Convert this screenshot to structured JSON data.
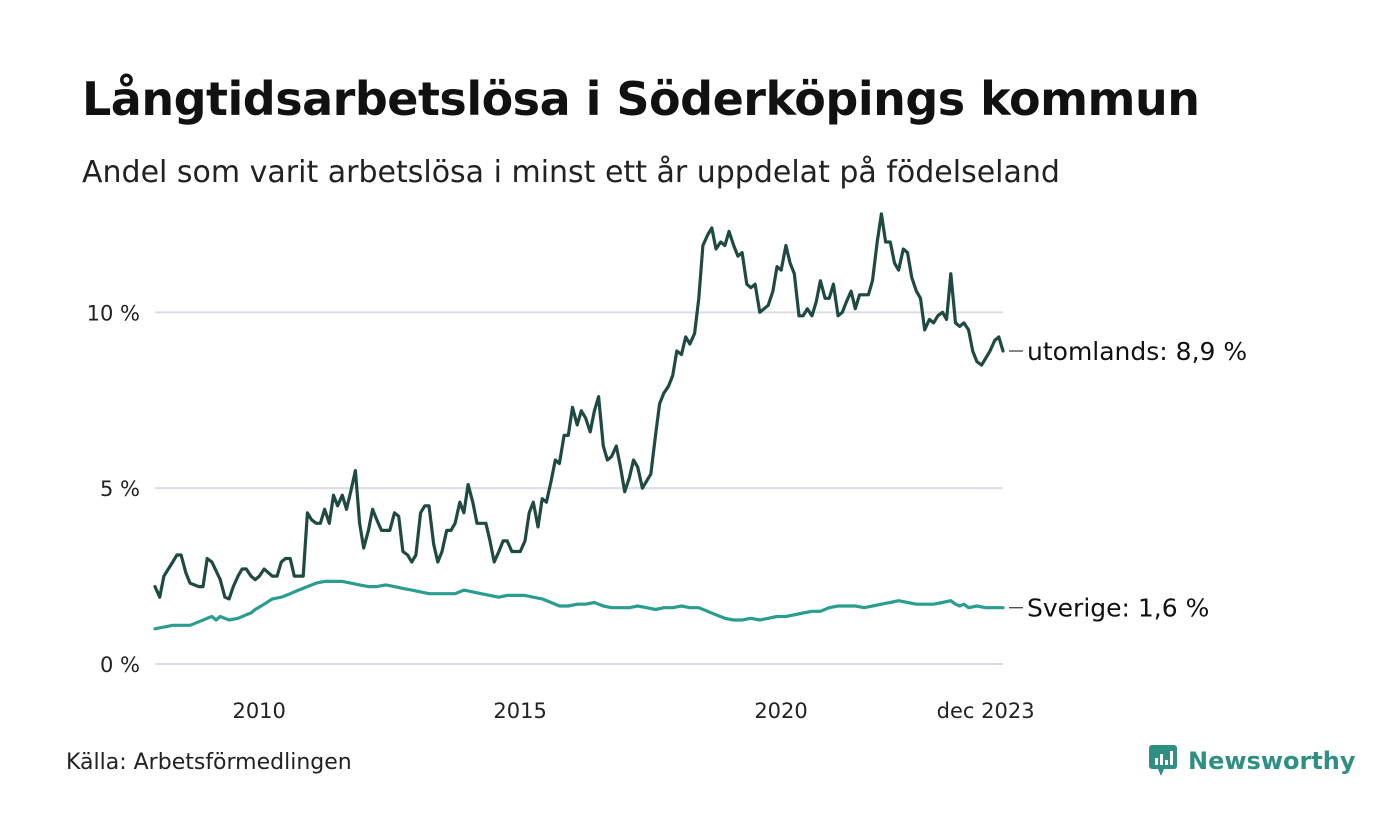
{
  "chart_data": {
    "type": "line",
    "title": "Långtidsarbetslösa i Söderköpings kommun",
    "subtitle": "Andel som varit arbetslösa i minst ett år uppdelat på födelseland",
    "xlabel": "",
    "ylabel": "",
    "ylim": [
      0,
      12
    ],
    "xlim": [
      2008.08,
      2023.92
    ],
    "y_ticks": [
      {
        "value": 0,
        "label": "0 %"
      },
      {
        "value": 5,
        "label": "5 %"
      },
      {
        "value": 10,
        "label": "10 %"
      }
    ],
    "x_ticks": [
      {
        "value": 2010,
        "label": "2010"
      },
      {
        "value": 2015,
        "label": "2015"
      },
      {
        "value": 2020,
        "label": "2020"
      },
      {
        "value": 2023.92,
        "label": "dec 2023"
      }
    ],
    "grid": true,
    "series": [
      {
        "name": "utomlands",
        "end_label": "utomlands: 8,9 %",
        "color": "#1f4a42",
        "points": [
          [
            2008.08,
            2.2
          ],
          [
            2008.17,
            1.9
          ],
          [
            2008.25,
            2.5
          ],
          [
            2008.42,
            2.9
          ],
          [
            2008.5,
            3.1
          ],
          [
            2008.58,
            3.1
          ],
          [
            2008.67,
            2.6
          ],
          [
            2008.75,
            2.3
          ],
          [
            2008.92,
            2.2
          ],
          [
            2009.0,
            2.2
          ],
          [
            2009.08,
            3.0
          ],
          [
            2009.17,
            2.9
          ],
          [
            2009.33,
            2.4
          ],
          [
            2009.42,
            1.9
          ],
          [
            2009.5,
            1.85
          ],
          [
            2009.58,
            2.2
          ],
          [
            2009.67,
            2.5
          ],
          [
            2009.75,
            2.7
          ],
          [
            2009.83,
            2.7
          ],
          [
            2009.92,
            2.5
          ],
          [
            2010.0,
            2.4
          ],
          [
            2010.08,
            2.5
          ],
          [
            2010.17,
            2.7
          ],
          [
            2010.25,
            2.6
          ],
          [
            2010.33,
            2.5
          ],
          [
            2010.42,
            2.5
          ],
          [
            2010.5,
            2.9
          ],
          [
            2010.58,
            3.0
          ],
          [
            2010.67,
            3.0
          ],
          [
            2010.75,
            2.5
          ],
          [
            2010.83,
            2.5
          ],
          [
            2010.92,
            2.5
          ],
          [
            2011.0,
            4.3
          ],
          [
            2011.08,
            4.1
          ],
          [
            2011.17,
            4.0
          ],
          [
            2011.25,
            4.0
          ],
          [
            2011.33,
            4.4
          ],
          [
            2011.42,
            4.0
          ],
          [
            2011.5,
            4.8
          ],
          [
            2011.58,
            4.5
          ],
          [
            2011.67,
            4.8
          ],
          [
            2011.75,
            4.4
          ],
          [
            2011.83,
            4.9
          ],
          [
            2011.92,
            5.5
          ],
          [
            2012.0,
            4.0
          ],
          [
            2012.08,
            3.3
          ],
          [
            2012.17,
            3.8
          ],
          [
            2012.25,
            4.4
          ],
          [
            2012.33,
            4.1
          ],
          [
            2012.42,
            3.8
          ],
          [
            2012.5,
            3.8
          ],
          [
            2012.58,
            3.8
          ],
          [
            2012.67,
            4.3
          ],
          [
            2012.75,
            4.2
          ],
          [
            2012.83,
            3.2
          ],
          [
            2012.92,
            3.1
          ],
          [
            2013.0,
            2.9
          ],
          [
            2013.08,
            3.1
          ],
          [
            2013.17,
            4.3
          ],
          [
            2013.25,
            4.5
          ],
          [
            2013.33,
            4.5
          ],
          [
            2013.42,
            3.4
          ],
          [
            2013.5,
            2.9
          ],
          [
            2013.58,
            3.2
          ],
          [
            2013.67,
            3.8
          ],
          [
            2013.75,
            3.8
          ],
          [
            2013.83,
            4.0
          ],
          [
            2013.92,
            4.6
          ],
          [
            2014.0,
            4.3
          ],
          [
            2014.08,
            5.1
          ],
          [
            2014.17,
            4.6
          ],
          [
            2014.25,
            4.0
          ],
          [
            2014.33,
            4.0
          ],
          [
            2014.42,
            4.0
          ],
          [
            2014.5,
            3.5
          ],
          [
            2014.58,
            2.9
          ],
          [
            2014.67,
            3.2
          ],
          [
            2014.75,
            3.5
          ],
          [
            2014.83,
            3.5
          ],
          [
            2014.92,
            3.2
          ],
          [
            2015.0,
            3.2
          ],
          [
            2015.08,
            3.2
          ],
          [
            2015.17,
            3.5
          ],
          [
            2015.25,
            4.3
          ],
          [
            2015.33,
            4.6
          ],
          [
            2015.42,
            3.9
          ],
          [
            2015.5,
            4.7
          ],
          [
            2015.58,
            4.6
          ],
          [
            2015.67,
            5.2
          ],
          [
            2015.75,
            5.8
          ],
          [
            2015.83,
            5.7
          ],
          [
            2015.92,
            6.5
          ],
          [
            2016.0,
            6.5
          ],
          [
            2016.08,
            7.3
          ],
          [
            2016.17,
            6.8
          ],
          [
            2016.25,
            7.2
          ],
          [
            2016.33,
            7.0
          ],
          [
            2016.42,
            6.6
          ],
          [
            2016.5,
            7.2
          ],
          [
            2016.58,
            7.6
          ],
          [
            2016.67,
            6.2
          ],
          [
            2016.75,
            5.8
          ],
          [
            2016.83,
            5.9
          ],
          [
            2016.92,
            6.2
          ],
          [
            2017.0,
            5.6
          ],
          [
            2017.08,
            4.9
          ],
          [
            2017.17,
            5.3
          ],
          [
            2017.25,
            5.8
          ],
          [
            2017.33,
            5.6
          ],
          [
            2017.42,
            5.0
          ],
          [
            2017.5,
            5.2
          ],
          [
            2017.58,
            5.4
          ],
          [
            2017.67,
            6.5
          ],
          [
            2017.75,
            7.4
          ],
          [
            2017.83,
            7.7
          ],
          [
            2017.92,
            7.9
          ],
          [
            2018.0,
            8.2
          ],
          [
            2018.08,
            8.9
          ],
          [
            2018.17,
            8.8
          ],
          [
            2018.25,
            9.3
          ],
          [
            2018.33,
            9.1
          ],
          [
            2018.42,
            9.4
          ],
          [
            2018.5,
            10.4
          ],
          [
            2018.58,
            11.9
          ],
          [
            2018.67,
            12.2
          ],
          [
            2018.75,
            12.4
          ],
          [
            2018.83,
            11.8
          ],
          [
            2018.92,
            12.0
          ],
          [
            2019.0,
            11.9
          ],
          [
            2019.08,
            12.3
          ],
          [
            2019.17,
            11.9
          ],
          [
            2019.25,
            11.6
          ],
          [
            2019.33,
            11.7
          ],
          [
            2019.42,
            10.8
          ],
          [
            2019.5,
            10.7
          ],
          [
            2019.58,
            10.8
          ],
          [
            2019.67,
            10.0
          ],
          [
            2019.75,
            10.1
          ],
          [
            2019.83,
            10.2
          ],
          [
            2019.92,
            10.6
          ],
          [
            2020.0,
            11.3
          ],
          [
            2020.08,
            11.2
          ],
          [
            2020.17,
            11.9
          ],
          [
            2020.25,
            11.4
          ],
          [
            2020.33,
            11.1
          ],
          [
            2020.42,
            9.9
          ],
          [
            2020.5,
            9.9
          ],
          [
            2020.58,
            10.1
          ],
          [
            2020.67,
            9.9
          ],
          [
            2020.75,
            10.3
          ],
          [
            2020.83,
            10.9
          ],
          [
            2020.92,
            10.4
          ],
          [
            2021.0,
            10.4
          ],
          [
            2021.08,
            10.8
          ],
          [
            2021.17,
            9.9
          ],
          [
            2021.25,
            10.0
          ],
          [
            2021.33,
            10.3
          ],
          [
            2021.42,
            10.6
          ],
          [
            2021.5,
            10.1
          ],
          [
            2021.58,
            10.5
          ],
          [
            2021.67,
            10.5
          ],
          [
            2021.75,
            10.5
          ],
          [
            2021.83,
            10.9
          ],
          [
            2021.92,
            12.0
          ],
          [
            2022.0,
            12.8
          ],
          [
            2022.08,
            12.0
          ],
          [
            2022.17,
            12.0
          ],
          [
            2022.25,
            11.4
          ],
          [
            2022.33,
            11.2
          ],
          [
            2022.42,
            11.8
          ],
          [
            2022.5,
            11.7
          ],
          [
            2022.58,
            11.0
          ],
          [
            2022.67,
            10.6
          ],
          [
            2022.75,
            10.4
          ],
          [
            2022.83,
            9.5
          ],
          [
            2022.92,
            9.8
          ],
          [
            2023.0,
            9.7
          ],
          [
            2023.08,
            9.9
          ],
          [
            2023.17,
            10.0
          ],
          [
            2023.25,
            9.8
          ],
          [
            2023.33,
            11.1
          ],
          [
            2023.42,
            9.7
          ],
          [
            2023.5,
            9.6
          ],
          [
            2023.58,
            9.7
          ],
          [
            2023.67,
            9.5
          ],
          [
            2023.75,
            8.9
          ],
          [
            2023.83,
            8.6
          ],
          [
            2023.92,
            8.5
          ],
          [
            2024.0,
            8.7
          ],
          [
            2024.08,
            8.9
          ],
          [
            2024.17,
            9.2
          ],
          [
            2024.25,
            9.3
          ],
          [
            2024.33,
            8.9
          ]
        ]
      },
      {
        "name": "Sverige",
        "end_label": "Sverige: 1,6 %",
        "color": "#2a9d8f",
        "points": [
          [
            2008.08,
            1.0
          ],
          [
            2008.25,
            1.05
          ],
          [
            2008.42,
            1.1
          ],
          [
            2008.58,
            1.1
          ],
          [
            2008.75,
            1.1
          ],
          [
            2008.92,
            1.2
          ],
          [
            2009.08,
            1.3
          ],
          [
            2009.17,
            1.35
          ],
          [
            2009.25,
            1.25
          ],
          [
            2009.33,
            1.35
          ],
          [
            2009.5,
            1.25
          ],
          [
            2009.67,
            1.3
          ],
          [
            2009.83,
            1.4
          ],
          [
            2009.92,
            1.45
          ],
          [
            2010.0,
            1.55
          ],
          [
            2010.17,
            1.7
          ],
          [
            2010.33,
            1.85
          ],
          [
            2010.5,
            1.9
          ],
          [
            2010.67,
            2.0
          ],
          [
            2010.83,
            2.1
          ],
          [
            2011.0,
            2.2
          ],
          [
            2011.17,
            2.3
          ],
          [
            2011.33,
            2.35
          ],
          [
            2011.5,
            2.35
          ],
          [
            2011.67,
            2.35
          ],
          [
            2011.83,
            2.3
          ],
          [
            2012.0,
            2.25
          ],
          [
            2012.17,
            2.2
          ],
          [
            2012.33,
            2.2
          ],
          [
            2012.5,
            2.25
          ],
          [
            2012.67,
            2.2
          ],
          [
            2012.83,
            2.15
          ],
          [
            2013.0,
            2.1
          ],
          [
            2013.17,
            2.05
          ],
          [
            2013.33,
            2.0
          ],
          [
            2013.5,
            2.0
          ],
          [
            2013.67,
            2.0
          ],
          [
            2013.83,
            2.0
          ],
          [
            2014.0,
            2.1
          ],
          [
            2014.17,
            2.05
          ],
          [
            2014.33,
            2.0
          ],
          [
            2014.5,
            1.95
          ],
          [
            2014.67,
            1.9
          ],
          [
            2014.83,
            1.95
          ],
          [
            2015.0,
            1.95
          ],
          [
            2015.17,
            1.95
          ],
          [
            2015.33,
            1.9
          ],
          [
            2015.5,
            1.85
          ],
          [
            2015.67,
            1.75
          ],
          [
            2015.83,
            1.65
          ],
          [
            2016.0,
            1.65
          ],
          [
            2016.17,
            1.7
          ],
          [
            2016.33,
            1.7
          ],
          [
            2016.5,
            1.75
          ],
          [
            2016.67,
            1.65
          ],
          [
            2016.83,
            1.6
          ],
          [
            2017.0,
            1.6
          ],
          [
            2017.17,
            1.6
          ],
          [
            2017.33,
            1.65
          ],
          [
            2017.5,
            1.6
          ],
          [
            2017.67,
            1.55
          ],
          [
            2017.83,
            1.6
          ],
          [
            2018.0,
            1.6
          ],
          [
            2018.17,
            1.65
          ],
          [
            2018.33,
            1.6
          ],
          [
            2018.5,
            1.6
          ],
          [
            2018.67,
            1.5
          ],
          [
            2018.83,
            1.4
          ],
          [
            2019.0,
            1.3
          ],
          [
            2019.17,
            1.25
          ],
          [
            2019.33,
            1.25
          ],
          [
            2019.5,
            1.3
          ],
          [
            2019.67,
            1.25
          ],
          [
            2019.83,
            1.3
          ],
          [
            2020.0,
            1.35
          ],
          [
            2020.17,
            1.35
          ],
          [
            2020.33,
            1.4
          ],
          [
            2020.5,
            1.45
          ],
          [
            2020.67,
            1.5
          ],
          [
            2020.83,
            1.5
          ],
          [
            2021.0,
            1.6
          ],
          [
            2021.17,
            1.65
          ],
          [
            2021.33,
            1.65
          ],
          [
            2021.5,
            1.65
          ],
          [
            2021.67,
            1.6
          ],
          [
            2021.83,
            1.65
          ],
          [
            2022.0,
            1.7
          ],
          [
            2022.17,
            1.75
          ],
          [
            2022.33,
            1.8
          ],
          [
            2022.5,
            1.75
          ],
          [
            2022.67,
            1.7
          ],
          [
            2022.83,
            1.7
          ],
          [
            2023.0,
            1.7
          ],
          [
            2023.17,
            1.75
          ],
          [
            2023.33,
            1.8
          ],
          [
            2023.42,
            1.7
          ],
          [
            2023.5,
            1.65
          ],
          [
            2023.58,
            1.7
          ],
          [
            2023.67,
            1.6
          ],
          [
            2023.83,
            1.65
          ],
          [
            2024.0,
            1.6
          ],
          [
            2024.17,
            1.6
          ],
          [
            2024.33,
            1.6
          ]
        ]
      }
    ]
  },
  "footer": {
    "source": "Källa: Arbetsförmedlingen",
    "brand": "Newsworthy",
    "brand_color": "#2f8f83"
  }
}
